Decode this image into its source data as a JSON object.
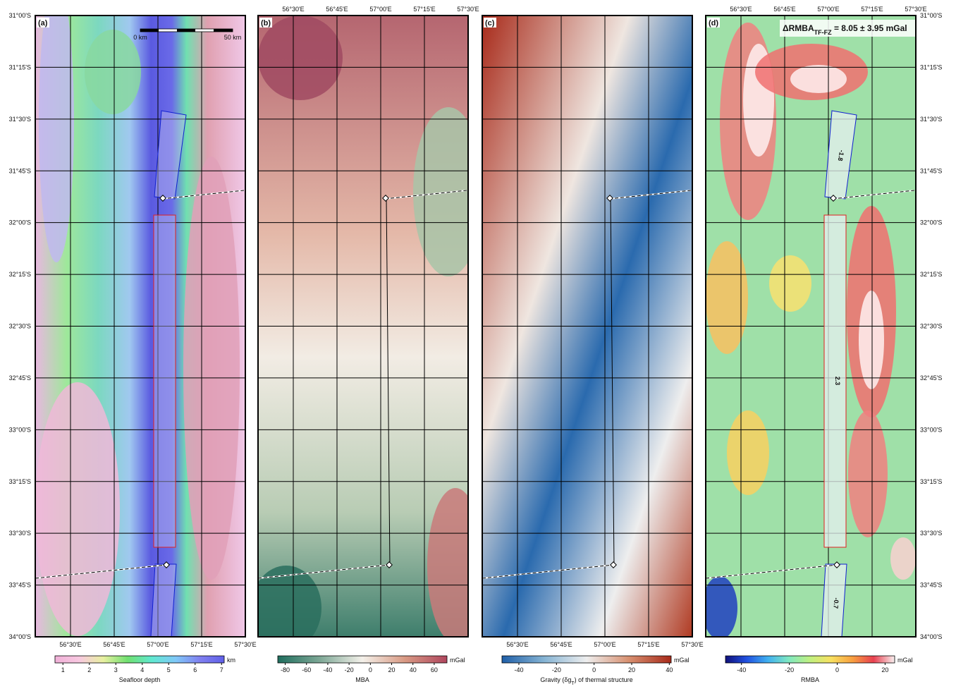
{
  "lon_ticks": [
    "56°30'E",
    "56°45'E",
    "57°00'E",
    "57°15'E",
    "57°30'E"
  ],
  "lat_ticks": [
    "31°00'S",
    "31°15'S",
    "31°30'S",
    "31°45'S",
    "32°00'S",
    "32°15'S",
    "32°30'S",
    "32°45'S",
    "33°00'S",
    "33°15'S",
    "33°30'S",
    "33°45'S",
    "34°00'S"
  ],
  "panels": [
    {
      "label": "(a)",
      "colorbar": {
        "title": "Seafloor depth",
        "unit": "km",
        "lim": [
          0.7,
          7.1
        ],
        "ticks": [
          1,
          2,
          3,
          4,
          5,
          6,
          7
        ],
        "colors": [
          "#f0b0d8",
          "#f8c8e0",
          "#e8f0a0",
          "#70e070",
          "#60e8d0",
          "#80c8f8",
          "#8080f0",
          "#6060e8"
        ]
      }
    },
    {
      "label": "(b)",
      "colorbar": {
        "title": "MBA",
        "unit": "mGal",
        "lim": [
          -87,
          72
        ],
        "ticks": [
          -80,
          -60,
          -40,
          -20,
          0,
          20,
          40,
          60
        ],
        "colors": [
          "#1f6e5e",
          "#7ea896",
          "#f4f1ea",
          "#d99a84",
          "#b0465e"
        ]
      }
    },
    {
      "label": "(c)",
      "colorbar": {
        "title": "Gravity (δg",
        "title_sub": "T",
        "title_end": ") of thermal structure",
        "unit": "mGal",
        "lim": [
          -49,
          41
        ],
        "ticks": [
          -40,
          -20,
          0,
          20,
          40
        ],
        "colors": [
          "#1f5fa8",
          "#86b4d4",
          "#eeeeee",
          "#d89070",
          "#a82a1a"
        ]
      }
    },
    {
      "label": "(d)",
      "colorbar": {
        "title": "RMBA",
        "unit": "mGal",
        "lim": [
          -46.7,
          24
        ],
        "ticks": [
          -40,
          -20,
          0,
          20
        ],
        "colors": [
          "#10107a",
          "#2050e0",
          "#40b0f0",
          "#80e8c0",
          "#c0f080",
          "#f8e060",
          "#f8a040",
          "#e84050",
          "#f8f0f0"
        ]
      }
    }
  ],
  "scale_bar": {
    "start": "0 km",
    "end": "50 km"
  },
  "annotation": {
    "text": "ΔRMBA",
    "sub": "TF-FZ",
    "rest": " = 8.05 ± 3.95 mGal"
  },
  "segment_labels": [
    "-1.8",
    "2.3",
    "-0.7"
  ]
}
